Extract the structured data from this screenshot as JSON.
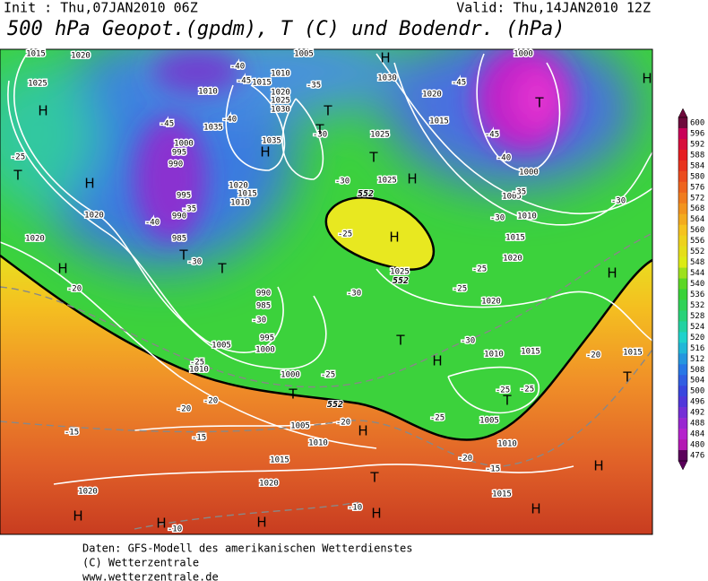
{
  "header": {
    "init": "Init : Thu,07JAN2010 06Z",
    "valid": "Valid: Thu,14JAN2010 12Z",
    "title": "500 hPa Geopot.(gpdm), T (C) und Bodendr. (hPa)"
  },
  "map_labels": {
    "pressure": [
      "1015",
      "1020",
      "1025",
      "1010",
      "1035",
      "1000",
      "995",
      "990",
      "995",
      "990",
      "985",
      "1020",
      "1015",
      "1010",
      "1010",
      "1015",
      "1020",
      "1025",
      "1030",
      "1035",
      "1005",
      "1030",
      "1025",
      "1020",
      "1015",
      "1000",
      "1000",
      "1005",
      "1010",
      "1015",
      "1020",
      "1020",
      "1025",
      "1025",
      "990",
      "985",
      "995",
      "1000",
      "1005",
      "1010",
      "1000",
      "1005",
      "1010",
      "1015",
      "1020",
      "1020",
      "1010",
      "1015",
      "1005",
      "1010",
      "1015",
      "1015",
      "1020",
      "1020"
    ],
    "temperature": [
      "-40",
      "-45",
      "-35",
      "-40",
      "-45",
      "-35",
      "-40",
      "-30",
      "-25",
      "-20",
      "-30",
      "-25",
      "-20",
      "-20",
      "-15",
      "-15",
      "-20",
      "-25",
      "-20",
      "-15",
      "-10",
      "-10",
      "-30",
      "-30",
      "-25",
      "-30",
      "-25",
      "-25",
      "-30",
      "-25",
      "-25",
      "-25",
      "-20",
      "-30",
      "-30",
      "-45",
      "-45",
      "-40",
      "-35"
    ],
    "geopotential": [
      "552",
      "552",
      "552"
    ],
    "highs": [
      "H",
      "H",
      "H",
      "H",
      "H",
      "H",
      "H",
      "H",
      "H",
      "H",
      "H",
      "H",
      "H",
      "H",
      "H",
      "H",
      "H"
    ],
    "troughs": [
      "T",
      "T",
      "T",
      "T",
      "T",
      "T",
      "T",
      "T",
      "T",
      "T",
      "T",
      "T"
    ]
  },
  "colorbar": {
    "values": [
      600,
      596,
      592,
      588,
      584,
      580,
      576,
      572,
      568,
      564,
      560,
      556,
      552,
      548,
      544,
      540,
      536,
      532,
      528,
      524,
      520,
      516,
      512,
      508,
      504,
      500,
      496,
      492,
      488,
      484,
      480,
      476
    ]
  },
  "footer": [
    "Daten: GFS-Modell des amerikanischen Wetterdienstes",
    "(C) Wetterzentrale",
    "www.wetterzentrale.de"
  ]
}
